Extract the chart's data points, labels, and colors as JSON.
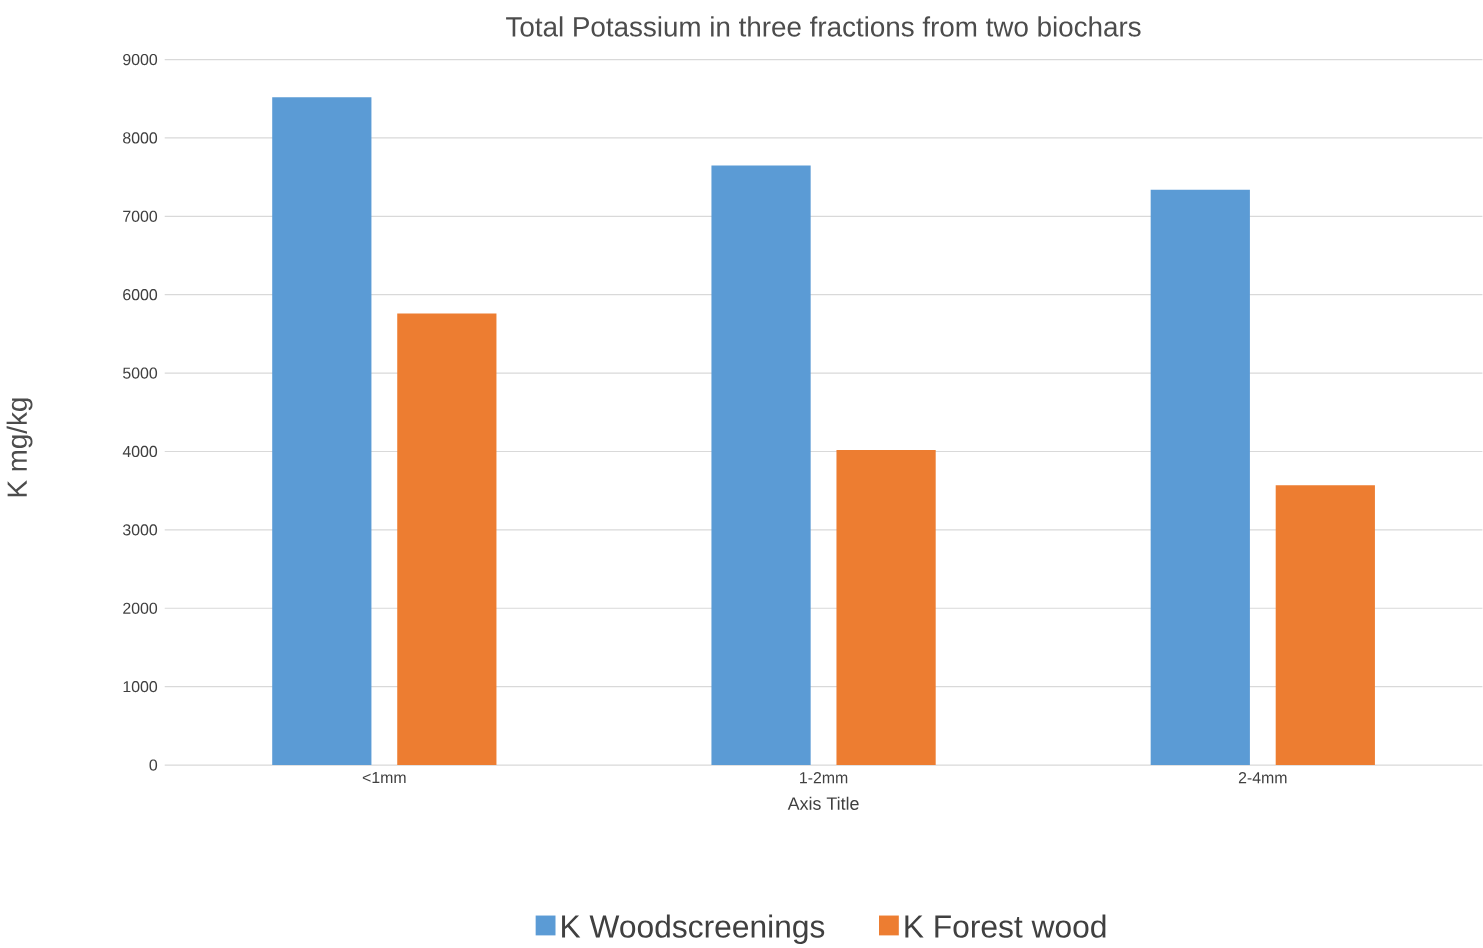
{
  "chart_data": {
    "type": "bar",
    "title": "Total Potassium in three fractions from two biochars",
    "categories": [
      "<1mm",
      "1-2mm",
      "2-4mm"
    ],
    "series": [
      {
        "name": "K Woodscreenings",
        "color": "#5b9bd5",
        "values": [
          8520,
          7650,
          7340
        ]
      },
      {
        "name": "K Forest wood",
        "color": "#ed7d31",
        "values": [
          5760,
          4020,
          3570
        ]
      }
    ],
    "xlabel": "Axis Title",
    "ylabel": "K mg/kg",
    "ylim": [
      0,
      9000
    ],
    "yticks": [
      0,
      1000,
      2000,
      3000,
      4000,
      5000,
      6000,
      7000,
      8000,
      9000
    ],
    "grid": "y",
    "legend": "bottom"
  }
}
